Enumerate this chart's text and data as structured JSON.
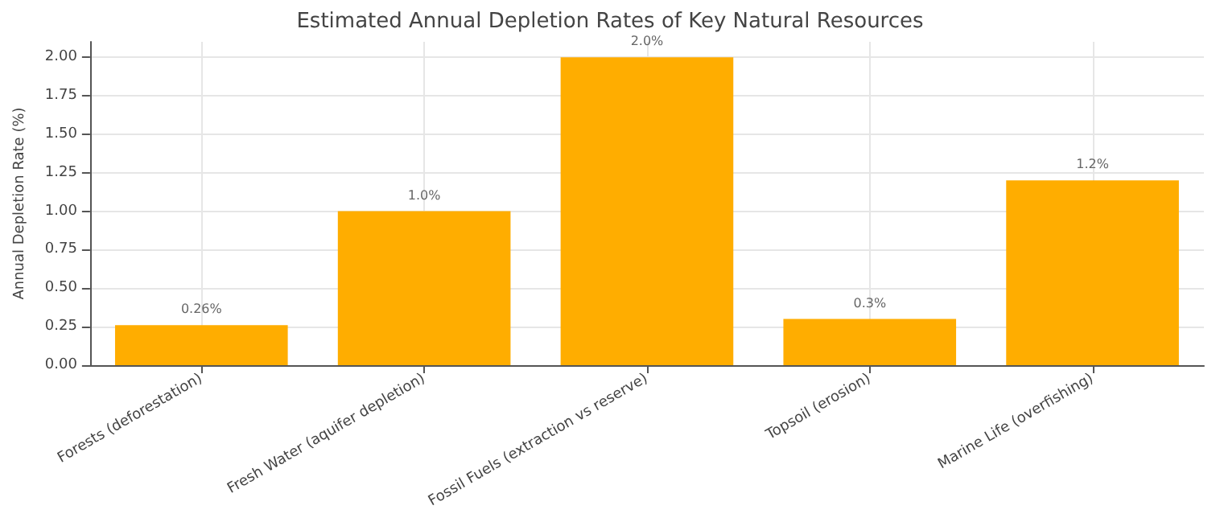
{
  "chart_data": {
    "type": "bar",
    "title": "Estimated Annual Depletion Rates of Key Natural Resources",
    "ylabel": "Annual Depletion Rate (%)",
    "categories": [
      "Forests (deforestation)",
      "Fresh Water (aquifer depletion)",
      "Fossil Fuels (extraction vs reserve)",
      "Topsoil (erosion)",
      "Marine Life (overfishing)"
    ],
    "values": [
      0.26,
      1.0,
      2.0,
      0.3,
      1.2
    ],
    "value_labels": [
      "0.26%",
      "1.0%",
      "2.0%",
      "0.3%",
      "1.2%"
    ],
    "color": "#ffad00",
    "ylim": [
      0,
      2.1
    ],
    "yticks": [
      {
        "value": 0,
        "label": "0.00"
      },
      {
        "value": 0.25,
        "label": "0.25"
      },
      {
        "value": 0.5,
        "label": "0.50"
      },
      {
        "value": 0.75,
        "label": "0.75"
      },
      {
        "value": 1,
        "label": "1.00"
      },
      {
        "value": 1.25,
        "label": "1.25"
      },
      {
        "value": 1.5,
        "label": "1.50"
      },
      {
        "value": 1.75,
        "label": "1.75"
      },
      {
        "value": 2,
        "label": "2.00"
      }
    ],
    "grid": true
  }
}
